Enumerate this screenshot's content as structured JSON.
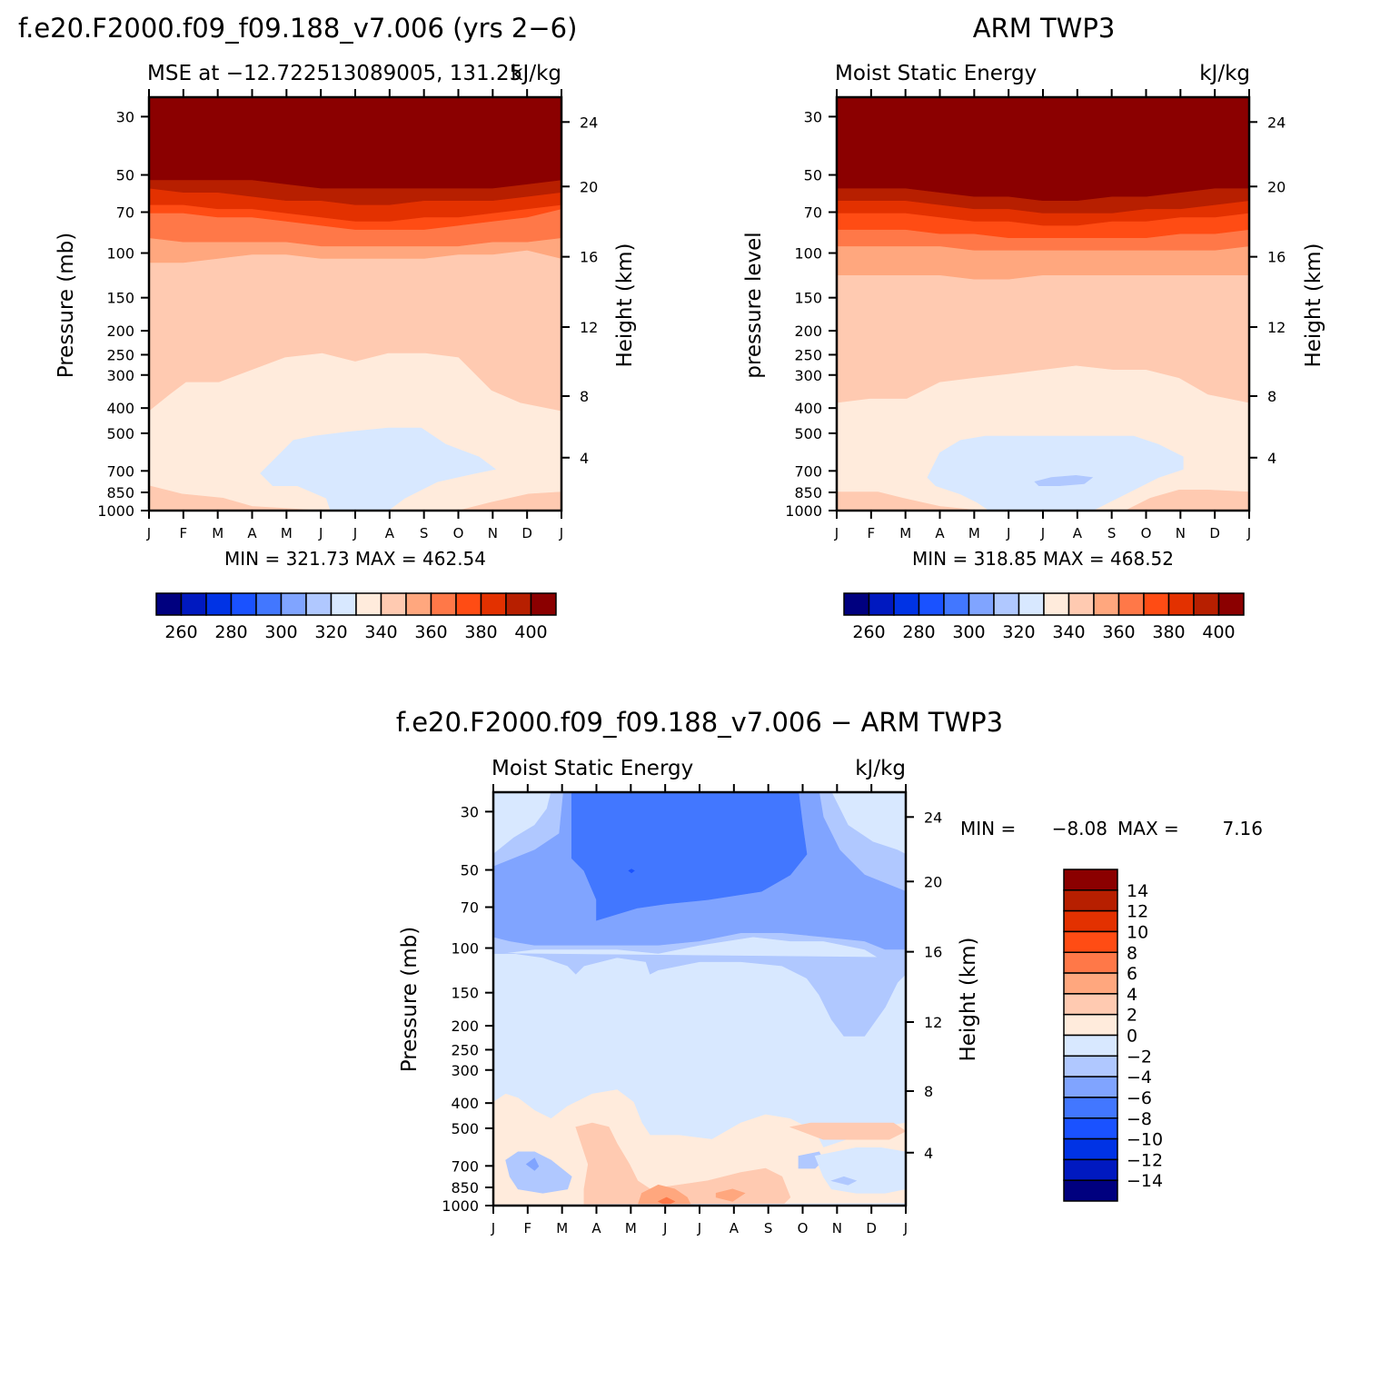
{
  "chart_data": [
    {
      "type": "heatmap",
      "panel_title": "f.e20.F2000.f09_f09.188_v7.006 (yrs 2−6)",
      "left_string": "MSE at −12.722513089005, 131.25",
      "right_string": "kJ/kg",
      "ylabel": "Pressure (mb)",
      "y2label": "Height (km)",
      "months": [
        "J",
        "F",
        "M",
        "A",
        "M",
        "J",
        "J",
        "A",
        "S",
        "O",
        "N",
        "D",
        "J"
      ],
      "pressure_ticks": [
        "30",
        "50",
        "70",
        "100",
        "150",
        "200",
        "250",
        "300",
        "400",
        "500",
        "700",
        "850",
        "1000"
      ],
      "height_ticks": [
        "24",
        "20",
        "16",
        "12",
        "8",
        "4"
      ],
      "stats": "MIN = 321.73 MAX = 462.54",
      "min": 321.73,
      "max": 462.54,
      "colorbar_labels": [
        "260",
        "280",
        "300",
        "320",
        "340",
        "360",
        "380",
        "400"
      ],
      "contour_levels_kJkg": [
        250,
        260,
        270,
        280,
        290,
        300,
        310,
        320,
        330,
        340,
        350,
        360,
        370,
        380,
        390,
        400
      ],
      "profile_pressure_mb": [
        1000,
        850,
        700,
        500,
        400,
        300,
        200,
        150,
        100,
        70,
        50,
        30
      ],
      "profile_mse_approx": [
        342,
        336,
        326,
        330,
        333,
        336,
        340,
        345,
        355,
        370,
        395,
        440
      ]
    },
    {
      "type": "heatmap",
      "panel_title": "ARM TWP3",
      "left_string": "Moist Static Energy",
      "right_string": "kJ/kg",
      "ylabel": "pressure level",
      "y2label": "Height (km)",
      "months": [
        "J",
        "F",
        "M",
        "A",
        "M",
        "J",
        "J",
        "A",
        "S",
        "O",
        "N",
        "D",
        "J"
      ],
      "pressure_ticks": [
        "30",
        "50",
        "70",
        "100",
        "150",
        "200",
        "250",
        "300",
        "400",
        "500",
        "700",
        "850",
        "1000"
      ],
      "height_ticks": [
        "24",
        "20",
        "16",
        "12",
        "8",
        "4"
      ],
      "stats": "MIN = 318.85 MAX = 468.52",
      "min": 318.85,
      "max": 468.52,
      "colorbar_labels": [
        "260",
        "280",
        "300",
        "320",
        "340",
        "360",
        "380",
        "400"
      ],
      "contour_levels_kJkg": [
        250,
        260,
        270,
        280,
        290,
        300,
        310,
        320,
        330,
        340,
        350,
        360,
        370,
        380,
        390,
        400
      ]
    },
    {
      "type": "heatmap",
      "panel_title": "f.e20.F2000.f09_f09.188_v7.006 − ARM TWP3",
      "left_string": "Moist Static Energy",
      "right_string": "kJ/kg",
      "ylabel": "Pressure (mb)",
      "y2label": "Height (km)",
      "months": [
        "J",
        "F",
        "M",
        "A",
        "M",
        "J",
        "J",
        "A",
        "S",
        "O",
        "N",
        "D",
        "J"
      ],
      "pressure_ticks": [
        "30",
        "50",
        "70",
        "100",
        "150",
        "200",
        "250",
        "300",
        "400",
        "500",
        "700",
        "850",
        "1000"
      ],
      "height_ticks": [
        "24",
        "20",
        "16",
        "12",
        "8",
        "4"
      ],
      "stats_min_label": "MIN =",
      "stats_min_value": "−8.08",
      "stats_max_label": "MAX =",
      "stats_max_value": "7.16",
      "min": -8.08,
      "max": 7.16,
      "colorbar_labels": [
        "14",
        "12",
        "10",
        "8",
        "6",
        "4",
        "2",
        "0",
        "−2",
        "−4",
        "−6",
        "−8",
        "−10",
        "−12",
        "−14"
      ],
      "contour_levels_kJkg": [
        -14,
        -12,
        -10,
        -8,
        -6,
        -4,
        -2,
        0,
        2,
        4,
        6,
        8,
        10,
        12,
        14
      ]
    }
  ],
  "palette": {
    "mse": [
      "#00007f",
      "#0019c0",
      "#0033e5",
      "#1a52ff",
      "#4277ff",
      "#80a4ff",
      "#b0c8ff",
      "#d8e8ff",
      "#ffebdc",
      "#ffcab1",
      "#ffa77e",
      "#ff7848",
      "#ff4c14",
      "#e33100",
      "#b71f00",
      "#8b0000"
    ],
    "diff": [
      "#00007f",
      "#0019c0",
      "#0033e5",
      "#1a52ff",
      "#4277ff",
      "#80a4ff",
      "#b0c8ff",
      "#d8e8ff",
      "#ffebdc",
      "#ffcab1",
      "#ffa77e",
      "#ff7848",
      "#ff4c14",
      "#e33100",
      "#b71f00",
      "#8b0000"
    ]
  }
}
